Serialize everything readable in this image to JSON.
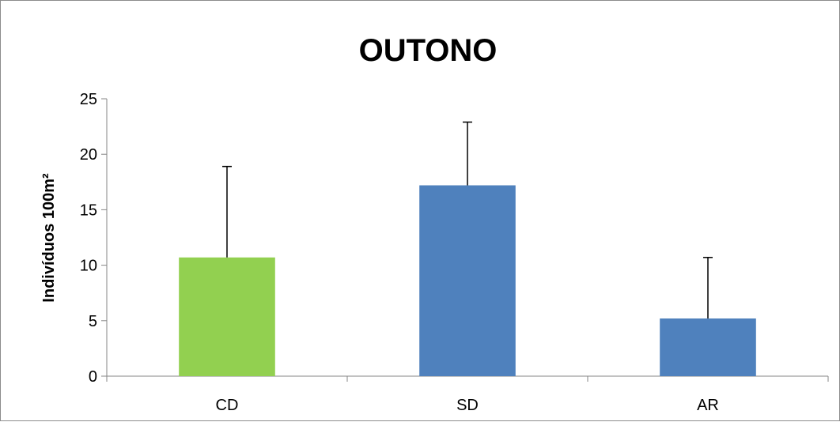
{
  "chart_data": {
    "type": "bar",
    "title": "OUTONO",
    "xlabel": "",
    "ylabel": "Indivíduos 100m²",
    "categories": [
      "CD",
      "SD",
      "AR"
    ],
    "values": [
      10.7,
      17.2,
      5.2
    ],
    "error_upper": [
      8.2,
      5.7,
      5.5
    ],
    "bar_colors": [
      "#92d050",
      "#4f81bd",
      "#4f81bd"
    ],
    "ylim": [
      0,
      25
    ],
    "yticks": [
      "0",
      "5",
      "10",
      "15",
      "20",
      "25"
    ],
    "grid": false,
    "legend": "none"
  }
}
